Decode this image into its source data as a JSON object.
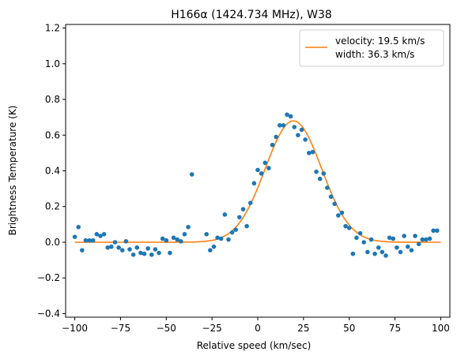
{
  "chart_data": {
    "type": "scatter",
    "title": "H166α (1424.734 MHz), W38",
    "xlabel": "Relative speed (km/sec)",
    "ylabel": "Brightness Temperature (K)",
    "xlim": [
      -105,
      105
    ],
    "ylim": [
      -0.42,
      1.22
    ],
    "xticks": [
      -100,
      -75,
      -50,
      -25,
      0,
      25,
      50,
      75,
      100
    ],
    "yticks": [
      -0.4,
      -0.2,
      0.0,
      0.2,
      0.4,
      0.6,
      0.8,
      1.0,
      1.2
    ],
    "xtick_labels": [
      "−100",
      "−75",
      "−50",
      "−25",
      "0",
      "25",
      "50",
      "75",
      "100"
    ],
    "ytick_labels": [
      "−0.4",
      "−0.2",
      "0.0",
      "0.2",
      "0.4",
      "0.6",
      "0.8",
      "1.0",
      "1.2"
    ],
    "grid": false,
    "legend_position": "top-right",
    "legend": [
      "velocity: 19.5 km/s",
      "width: 36.3 km/s"
    ],
    "colors": {
      "points": "#1f77b4",
      "fit": "#ff7f0e"
    },
    "series": [
      {
        "type": "scatter",
        "x": [
          -100,
          -98,
          -96,
          -94,
          -92,
          -90,
          -88,
          -86,
          -84,
          -82,
          -80,
          -78,
          -76,
          -74,
          -72,
          -70,
          -68,
          -66,
          -64,
          -62,
          -60,
          -58,
          -56,
          -54,
          -52,
          -50,
          -48,
          -46,
          -44,
          -42,
          -40,
          -38,
          -36,
          -28,
          -26,
          -24,
          -22,
          -20,
          -18,
          -16,
          -14,
          -12,
          -10,
          -8,
          -6,
          -4,
          -2,
          0,
          2,
          4,
          6,
          8,
          10,
          12,
          14,
          16,
          18,
          20,
          22,
          24,
          26,
          28,
          30,
          32,
          34,
          36,
          38,
          40,
          42,
          44,
          46,
          48,
          50,
          52,
          54,
          56,
          58,
          60,
          62,
          64,
          66,
          68,
          70,
          72,
          74,
          76,
          78,
          80,
          82,
          84,
          86,
          88,
          90,
          92,
          94,
          96,
          98
        ],
        "y": [
          0.03,
          0.085,
          -0.045,
          0.01,
          0.01,
          0.01,
          0.045,
          0.035,
          0.045,
          -0.03,
          -0.025,
          0.0,
          -0.03,
          -0.045,
          0.005,
          -0.04,
          -0.07,
          -0.03,
          -0.06,
          -0.065,
          -0.035,
          -0.07,
          -0.04,
          -0.06,
          0.02,
          0.01,
          -0.06,
          0.025,
          0.015,
          0.005,
          0.045,
          0.085,
          0.38,
          0.045,
          -0.045,
          -0.025,
          0.025,
          0.02,
          0.155,
          0.015,
          0.055,
          0.07,
          0.14,
          0.185,
          0.09,
          0.22,
          0.33,
          0.405,
          0.385,
          0.445,
          0.415,
          0.545,
          0.59,
          0.655,
          0.655,
          0.715,
          0.705,
          0.645,
          0.6,
          0.63,
          0.575,
          0.5,
          0.505,
          0.395,
          0.355,
          0.385,
          0.305,
          0.255,
          0.215,
          0.15,
          0.165,
          0.09,
          0.08,
          -0.065,
          0.025,
          0.05,
          0.0,
          -0.055,
          0.015,
          -0.065,
          -0.03,
          -0.055,
          -0.075,
          0.025,
          0.02,
          -0.03,
          -0.055,
          0.035,
          -0.025,
          -0.045,
          0.035,
          -0.01,
          0.015,
          0.015,
          0.02,
          0.065,
          0.065
        ]
      },
      {
        "type": "line",
        "name": "velocity: 19.5 km/s\nwidth: 36.3 km/s",
        "model": "gaussian",
        "amplitude": 0.68,
        "center": 19.5,
        "fwhm": 36.3,
        "x_range": [
          -100,
          100
        ]
      }
    ]
  }
}
